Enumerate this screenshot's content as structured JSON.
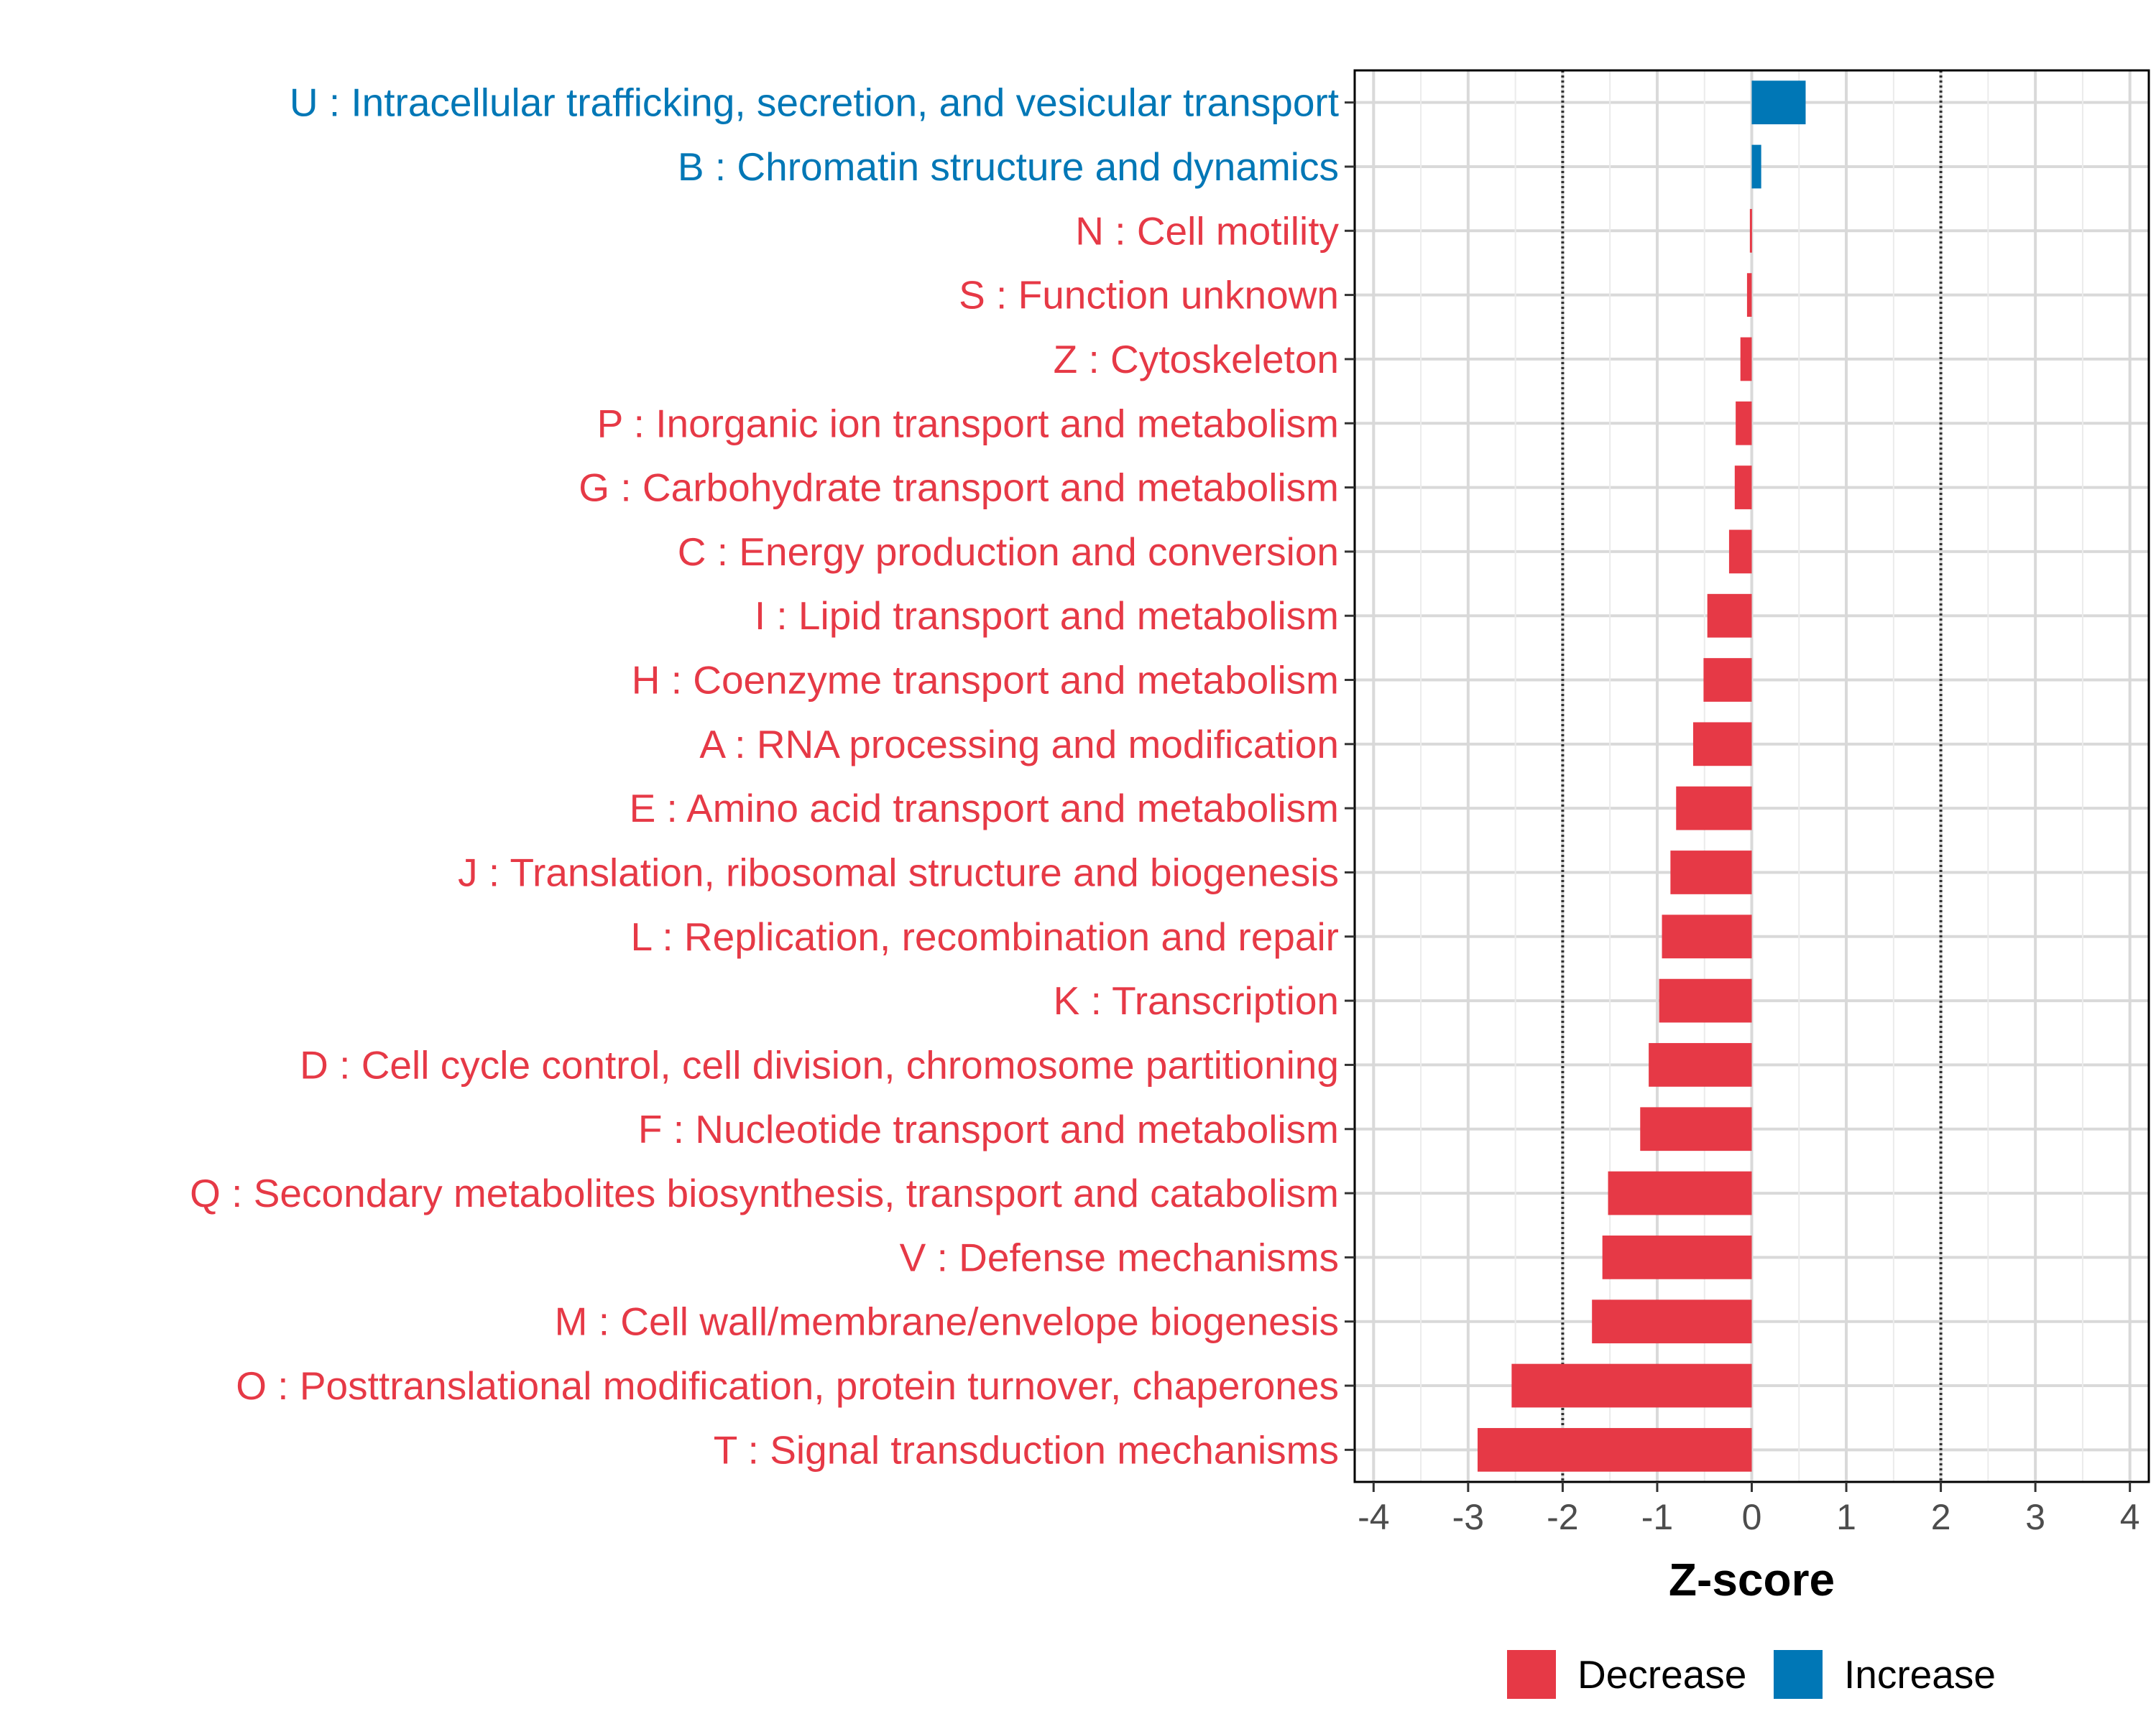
{
  "chart_data": {
    "type": "bar",
    "orientation": "horizontal",
    "title": "",
    "xlabel": "Z-score",
    "ylabel": "",
    "xlim": [
      -4.2,
      4.2
    ],
    "xticks": [
      "-4",
      "-3",
      "-2",
      "-1",
      "0",
      "1",
      "2",
      "3",
      "4"
    ],
    "reference_lines": [
      -2,
      2
    ],
    "grid": true,
    "legend_position": "bottom",
    "legend": [
      {
        "label": "Decrease",
        "color": "#E63946"
      },
      {
        "label": "Increase",
        "color": "#0077B6"
      }
    ],
    "colors": {
      "decrease": "#E63946",
      "increase": "#0077B6"
    },
    "categories": [
      "U : Intracellular trafficking, secretion, and vesicular transport",
      "B : Chromatin structure and dynamics",
      "N : Cell motility",
      "S : Function unknown",
      "Z : Cytoskeleton",
      "P : Inorganic ion transport and metabolism",
      "G : Carbohydrate transport and metabolism",
      "C : Energy production and conversion",
      "I : Lipid transport and metabolism",
      "H : Coenzyme transport and metabolism",
      "A : RNA processing and modification",
      "E : Amino acid transport and metabolism",
      "J : Translation, ribosomal structure and biogenesis",
      "L : Replication, recombination and repair",
      "K : Transcription",
      "D : Cell cycle control, cell division, chromosome partitioning",
      "F : Nucleotide transport and metabolism",
      "Q : Secondary metabolites biosynthesis, transport and catabolism",
      "V : Defense mechanisms",
      "M : Cell wall/membrane/envelope biogenesis",
      "O : Posttranslational modification, protein turnover, chaperones",
      "T : Signal transduction mechanisms"
    ],
    "values": [
      0.57,
      0.1,
      -0.02,
      -0.05,
      -0.12,
      -0.17,
      -0.18,
      -0.24,
      -0.47,
      -0.51,
      -0.62,
      -0.8,
      -0.86,
      -0.95,
      -0.98,
      -1.09,
      -1.18,
      -1.52,
      -1.58,
      -1.69,
      -2.54,
      -2.9
    ]
  }
}
